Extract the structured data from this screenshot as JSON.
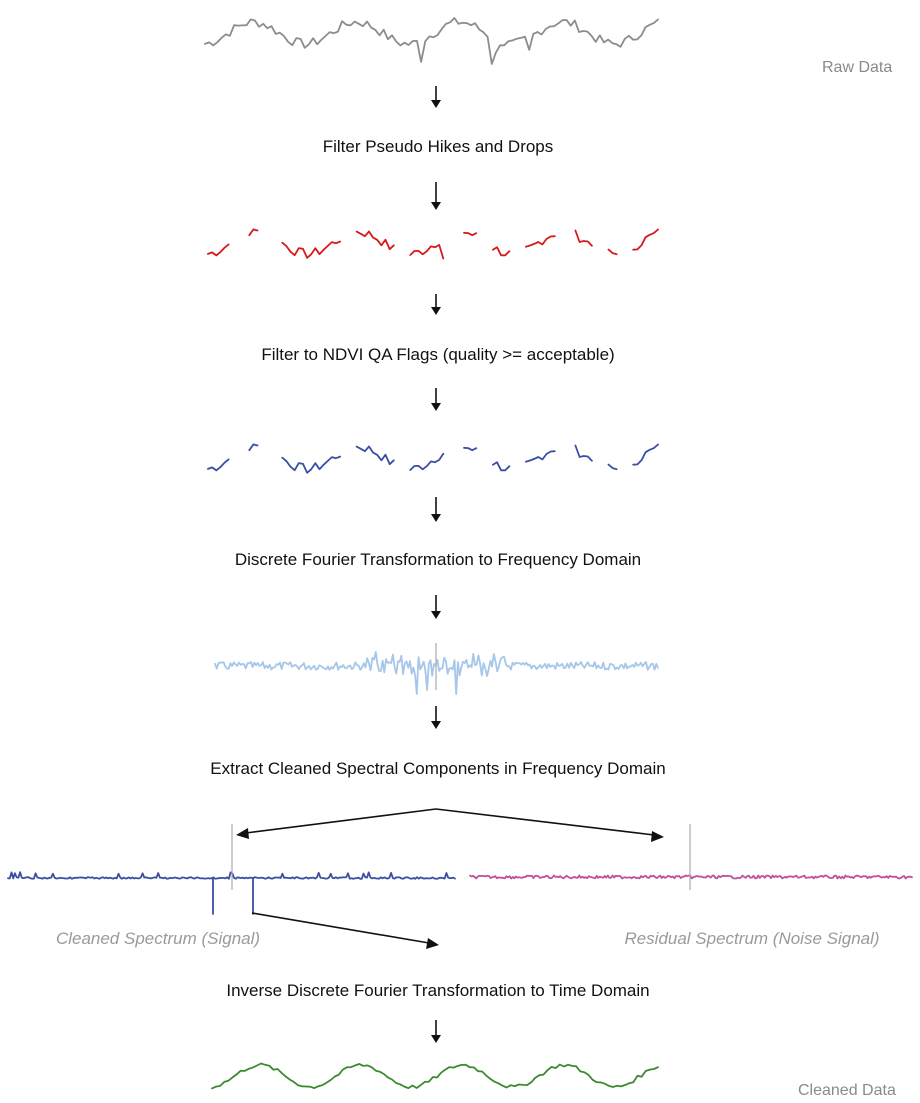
{
  "labels": {
    "raw_data": "Raw Data",
    "cleaned_data": "Cleaned Data",
    "cleaned_spectrum": "Cleaned Spectrum (Signal)",
    "residual_spectrum": "Residual Spectrum (Noise Signal)"
  },
  "steps": [
    "Filter Pseudo Hikes and Drops",
    "Filter to NDVI QA Flags (quality >= acceptable)",
    "Discrete Fourier Transformation to Frequency Domain",
    "Extract Cleaned Spectral Components in Frequency Domain",
    "Inverse Discrete Fourier Transformation to Time Domain"
  ],
  "colors": {
    "raw": "#8c8c8c",
    "filtered_spikes": "#d7191c",
    "qa_filtered": "#3a4fa3",
    "spectrum": "#a6c6ea",
    "cleaned_spectrum": "#3a4fa3",
    "residual_spectrum": "#c0509e",
    "cleaned_data": "#3a8a2e"
  }
}
